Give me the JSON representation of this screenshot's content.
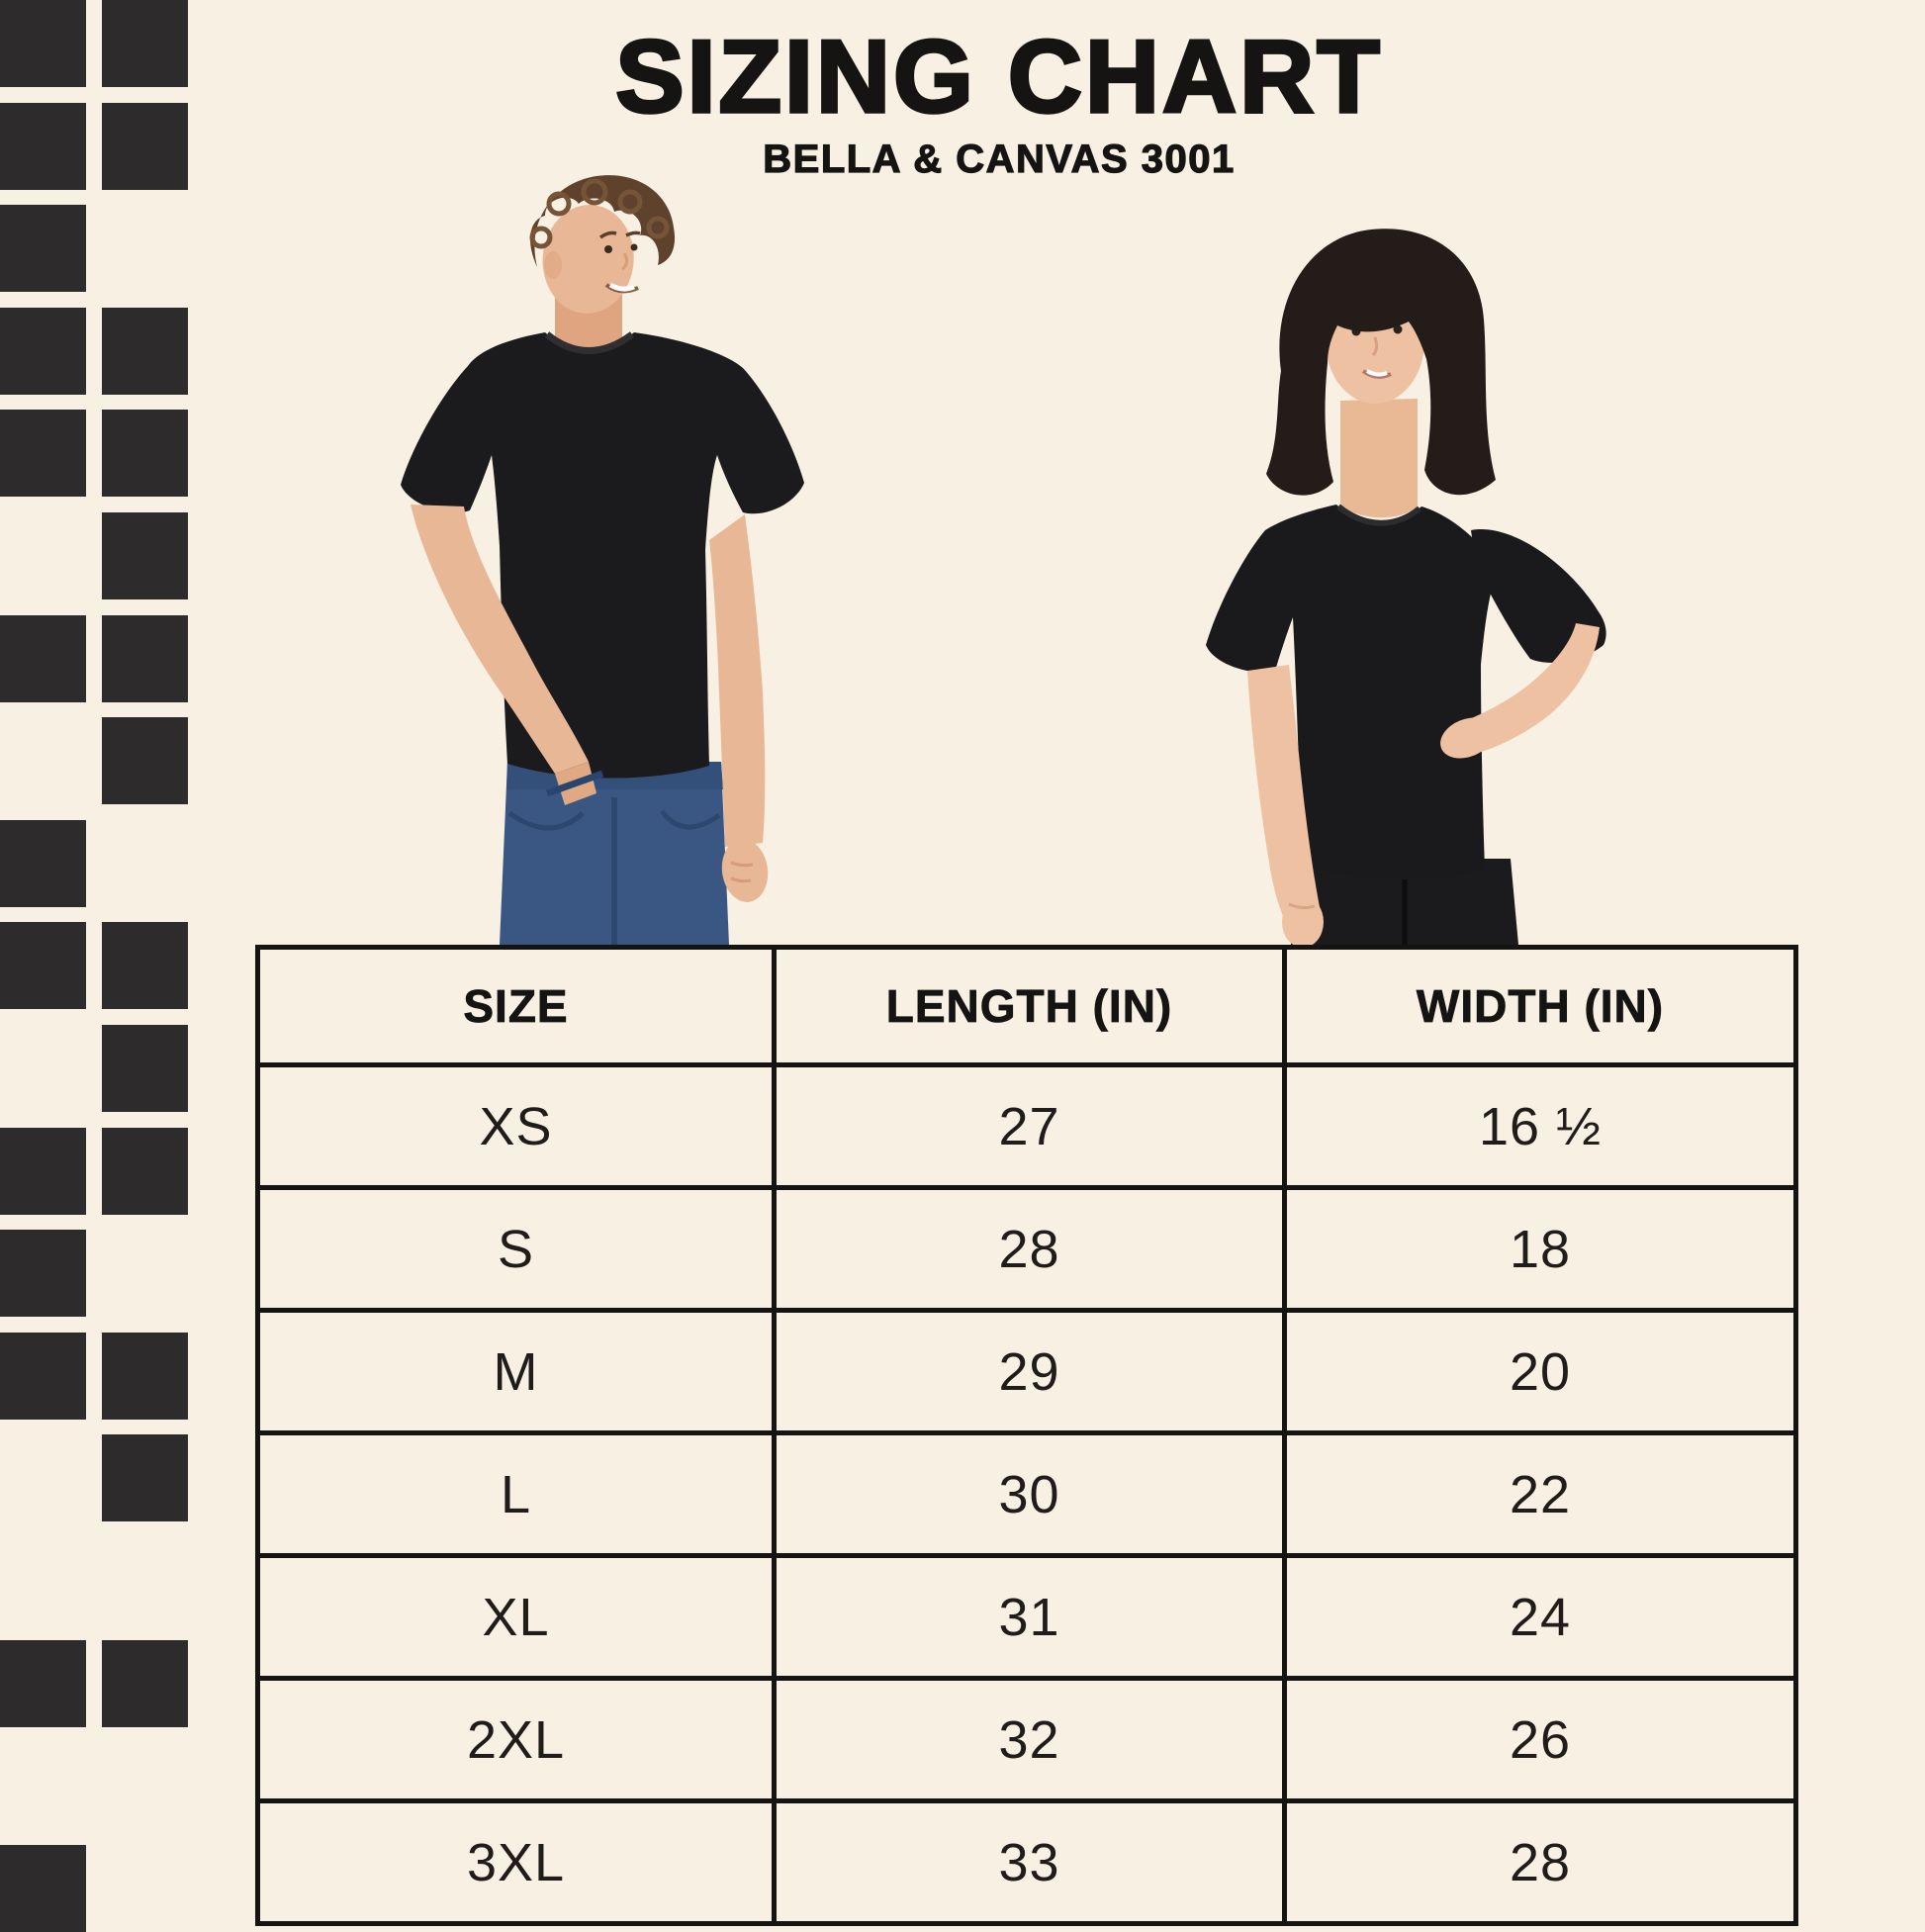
{
  "page": {
    "title": "SIZING CHART",
    "subtitle": "BELLA & CANVAS 3001",
    "background_color": "#F8F0E2",
    "ink_color": "#161413"
  },
  "pattern": {
    "square_color": "#2D2B2B",
    "rows": [
      "both",
      "both",
      "left",
      "both",
      "both",
      "right",
      "both",
      "right",
      "left",
      "both",
      "right",
      "both",
      "left",
      "both",
      "right",
      "none",
      "both",
      "none",
      "left"
    ]
  },
  "models": {
    "left": {
      "description": "Man with curly brown hair wearing a black crew-neck t-shirt and blue jeans, one hand in pocket"
    },
    "right": {
      "description": "Woman with dark shoulder-length hair and bangs wearing a black crew-neck t-shirt and black jeans, hand on hip"
    }
  },
  "chart_data": {
    "type": "table",
    "title": "SIZING CHART",
    "subtitle": "BELLA & CANVAS 3001",
    "columns": [
      "SIZE",
      "LENGTH (IN)",
      "WIDTH (IN)"
    ],
    "rows": [
      [
        "XS",
        "27",
        "16 ½"
      ],
      [
        "S",
        "28",
        "18"
      ],
      [
        "M",
        "29",
        "20"
      ],
      [
        "L",
        "30",
        "22"
      ],
      [
        "XL",
        "31",
        "24"
      ],
      [
        "2XL",
        "32",
        "26"
      ],
      [
        "3XL",
        "33",
        "28"
      ]
    ]
  }
}
